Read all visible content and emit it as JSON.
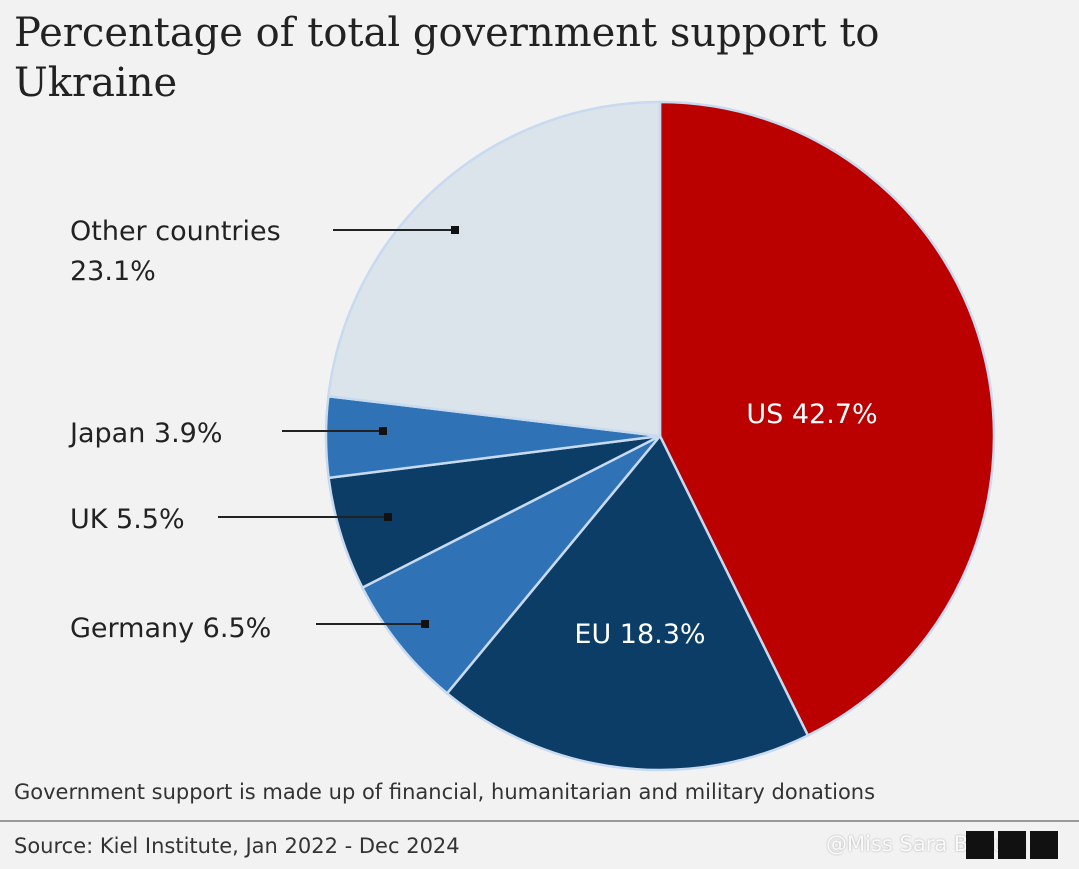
{
  "chart_data": {
    "type": "pie",
    "title": "Percentage of total government support to Ukraine",
    "slices": [
      {
        "label": "US",
        "value": 42.7,
        "display": "US 42.7%",
        "color": "#bb0000"
      },
      {
        "label": "EU",
        "value": 18.3,
        "display": "EU 18.3%",
        "color": "#0b3d66"
      },
      {
        "label": "Germany",
        "value": 6.5,
        "display": "Germany 6.5%",
        "color": "#2f72b5"
      },
      {
        "label": "UK",
        "value": 5.5,
        "display": "UK 5.5%",
        "color": "#0b3d66"
      },
      {
        "label": "Japan",
        "value": 3.9,
        "display": "Japan 3.9%",
        "color": "#2f72b5"
      },
      {
        "label": "Other countries",
        "value": 23.1,
        "display": "Other countries",
        "display2": "23.1%",
        "color": "#dbe3eb"
      }
    ],
    "start": "top",
    "direction": "clockwise",
    "note": "Government support is made up of financial, humanitarian and military donations",
    "source": "Source: Kiel Institute, Jan 2022 - Dec 2024"
  },
  "watermark": "@Miss Sara Bellum",
  "logo": "BBC"
}
